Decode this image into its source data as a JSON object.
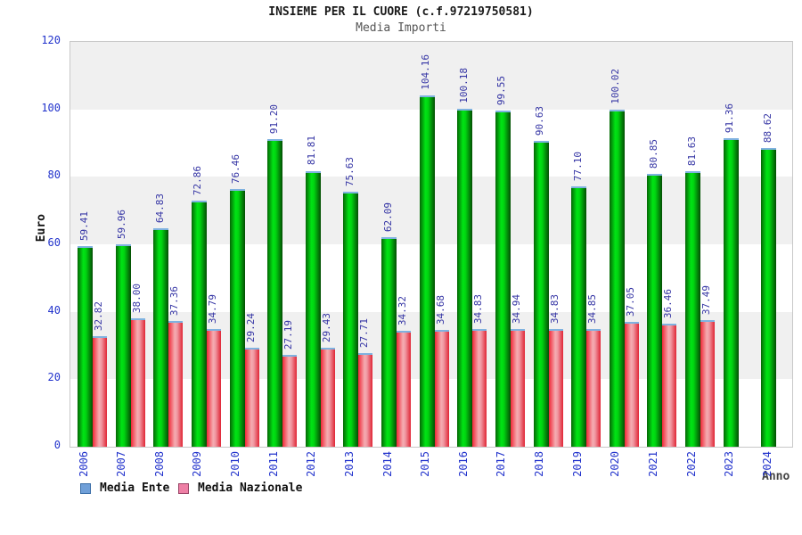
{
  "header": {
    "title": "INSIEME PER IL CUORE (c.f.97219750581)",
    "subtitle": "Media Importi"
  },
  "axes": {
    "ylabel": "Euro",
    "xlabel": "Anno",
    "yticks": [
      "0",
      "20",
      "40",
      "60",
      "80",
      "100",
      "120"
    ]
  },
  "legend": {
    "items": [
      {
        "label": "Media Ente",
        "swatch_fill": "#6f9fd8",
        "swatch_border": "#3a6ea8"
      },
      {
        "label": "Media Nazionale",
        "swatch_fill": "#ee7fa5",
        "swatch_border": "#994466"
      }
    ]
  },
  "colors": {
    "tick_text": "#2233cc",
    "value_text": "#3434a4",
    "band_gray": "#f0f0f0",
    "band_white": "#ffffff",
    "plot_border": "#c8c8c8",
    "bar_cap_blue": "#7fb2e0",
    "green_edge": "#056605",
    "green_mid": "#00e414",
    "green_right": "#044d04",
    "red_edge": "#f02838",
    "red_mid": "#f5adb2",
    "red_right": "#e02535"
  },
  "chart_data": {
    "type": "bar",
    "title": "INSIEME PER IL CUORE (c.f.97219750581)",
    "subtitle": "Media Importi",
    "xlabel": "Anno",
    "ylabel": "Euro",
    "ylim": [
      0,
      120
    ],
    "ytick_step": 20,
    "grid": "alternating-horizontal-bands",
    "legend_position": "bottom-left",
    "categories": [
      "2006",
      "2007",
      "2008",
      "2009",
      "2010",
      "2011",
      "2012",
      "2013",
      "2014",
      "2015",
      "2016",
      "2017",
      "2018",
      "2019",
      "2020",
      "2021",
      "2022",
      "2023",
      "2024"
    ],
    "series": [
      {
        "name": "Media Ente",
        "values": [
          59.41,
          59.96,
          64.83,
          72.86,
          76.46,
          91.2,
          81.81,
          75.63,
          62.09,
          104.16,
          100.18,
          99.55,
          90.63,
          77.1,
          100.02,
          80.85,
          81.63,
          91.36,
          88.62
        ]
      },
      {
        "name": "Media Nazionale",
        "values": [
          32.82,
          38.0,
          37.36,
          34.79,
          29.24,
          27.19,
          29.43,
          27.71,
          34.32,
          34.68,
          34.83,
          34.94,
          34.83,
          34.85,
          37.05,
          36.46,
          37.49,
          null,
          null
        ]
      }
    ]
  }
}
